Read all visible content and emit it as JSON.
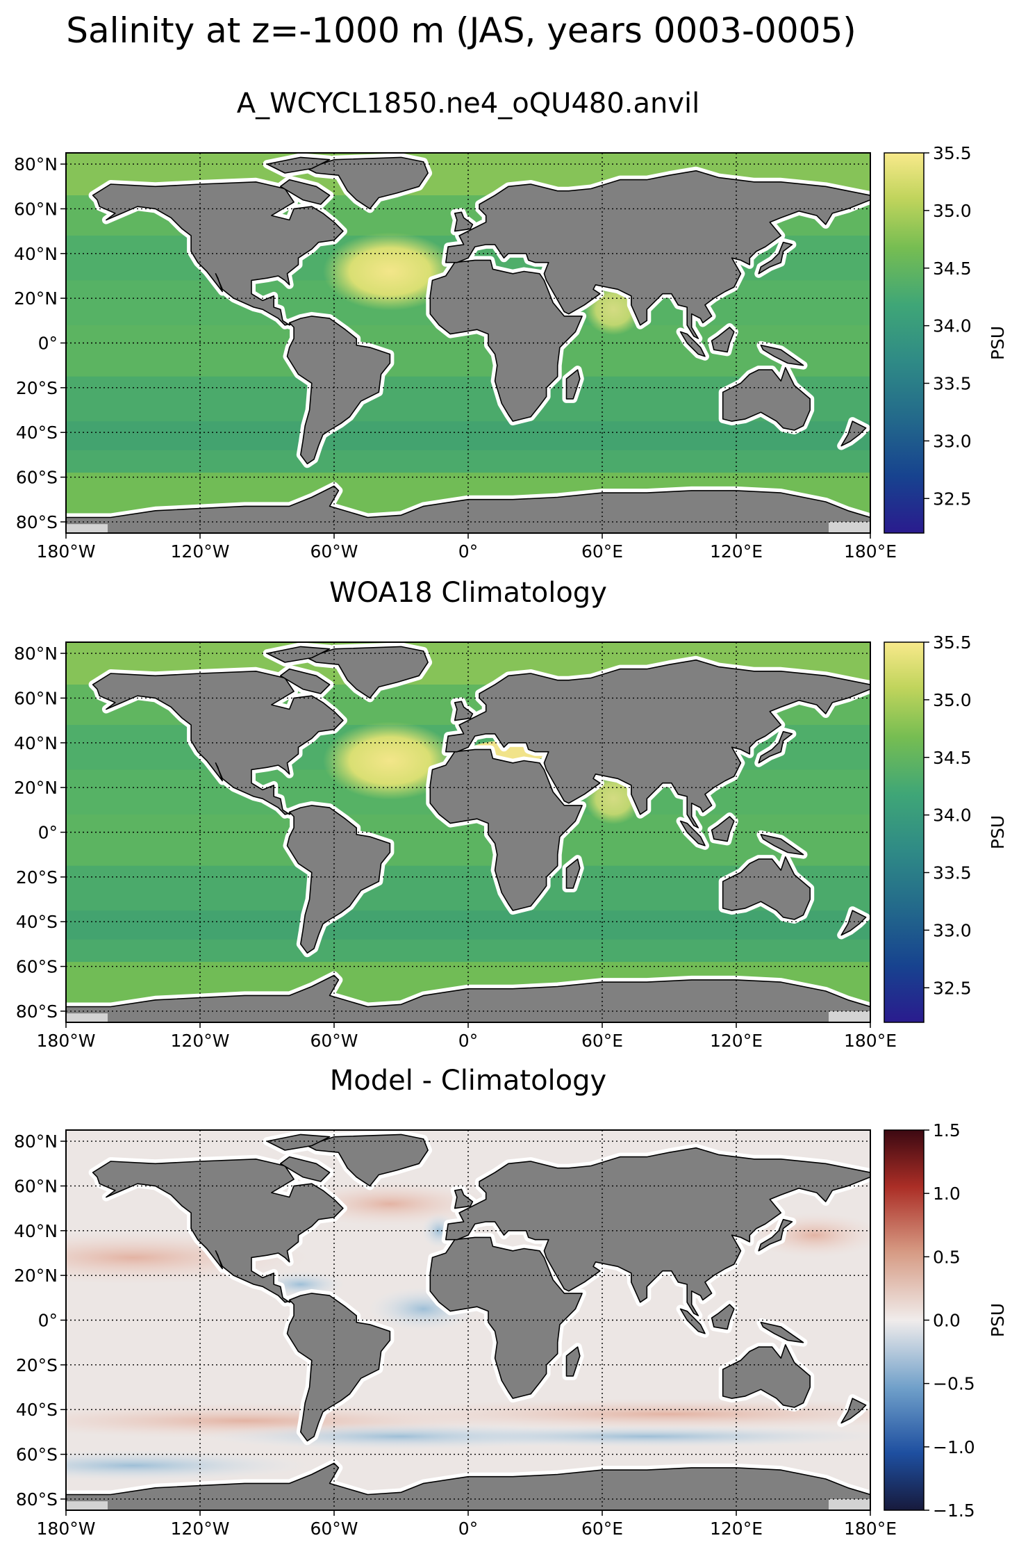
{
  "figure": {
    "title": "Salinity at z=-1000 m (JAS, years 0003-0005)"
  },
  "panels": [
    {
      "title": "A_WCYCL1850.ne4_oQU480.anvil",
      "colorbar": {
        "label": "PSU",
        "colormap": "haline",
        "ticks": [
          "32.5",
          "33.0",
          "33.5",
          "34.0",
          "34.5",
          "35.0",
          "35.5"
        ],
        "range": [
          32.2,
          35.5
        ]
      }
    },
    {
      "title": "WOA18 Climatology",
      "colorbar": {
        "label": "PSU",
        "colormap": "haline",
        "ticks": [
          "32.5",
          "33.0",
          "33.5",
          "34.0",
          "34.5",
          "35.0",
          "35.5"
        ],
        "range": [
          32.2,
          35.5
        ]
      }
    },
    {
      "title": "Model - Climatology",
      "colorbar": {
        "label": "PSU",
        "colormap": "balance",
        "ticks": [
          "−1.5",
          "−1.0",
          "−0.5",
          "0.0",
          "0.5",
          "1.0",
          "1.5"
        ],
        "range": [
          -1.5,
          1.5
        ]
      }
    }
  ],
  "axes": {
    "lon_ticks": [
      "180°W",
      "120°W",
      "60°W",
      "0°",
      "60°E",
      "120°E",
      "180°E"
    ],
    "lat_ticks": [
      "80°N",
      "60°N",
      "40°N",
      "20°N",
      "0°",
      "20°S",
      "40°S",
      "60°S",
      "80°S"
    ],
    "lon_values": [
      -180,
      -120,
      -60,
      0,
      60,
      120,
      180
    ],
    "lat_values": [
      80,
      60,
      40,
      20,
      0,
      -20,
      -40,
      -60,
      -80
    ],
    "lon_range": [
      -180,
      180
    ],
    "lat_range": [
      -85,
      85
    ],
    "grid": true
  },
  "colors": {
    "land": "#808080",
    "no_data": "#ffffff",
    "sea_ice_shelf": "#d3d3d3",
    "grid": "#000000"
  }
}
